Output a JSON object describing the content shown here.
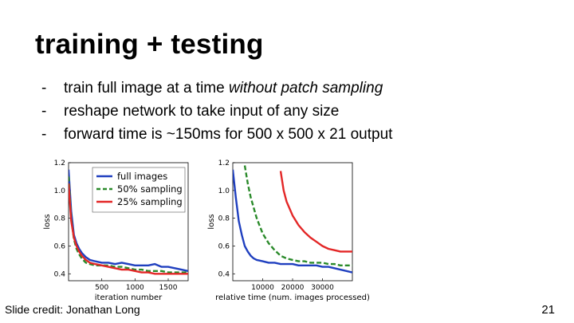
{
  "slide": {
    "title": "training + testing",
    "bullets": [
      {
        "dash": "-",
        "pre": "train full image at a time ",
        "em": "without patch sampling",
        "post": ""
      },
      {
        "dash": "-",
        "pre": "reshape network to take input of any size",
        "em": "",
        "post": ""
      },
      {
        "dash": "-",
        "pre": "forward time is ~150ms for 500 x 500 x 21 output",
        "em": "",
        "post": ""
      }
    ],
    "credit": "Slide credit: Jonathan Long",
    "page_number": "21"
  },
  "chart_data": [
    {
      "type": "line",
      "xlabel": "iteration number",
      "ylabel": "loss",
      "xlim": [
        0,
        1800
      ],
      "ylim": [
        0.35,
        1.2
      ],
      "xticks": [
        500,
        1000,
        1500
      ],
      "yticks": [
        0.4,
        0.6,
        0.8,
        1.0,
        1.2
      ],
      "grid": false,
      "legend": "top-right",
      "legend_entries": [
        {
          "label": "full images",
          "color": "#1f3fbf",
          "dash": "solid"
        },
        {
          "label": "50% sampling",
          "color": "#2a8a2a",
          "dash": "dashed"
        },
        {
          "label": "25% sampling",
          "color": "#e32626",
          "dash": "solid"
        }
      ],
      "series": [
        {
          "name": "full images",
          "color": "#1f3fbf",
          "x": [
            0,
            40,
            80,
            120,
            160,
            200,
            260,
            320,
            400,
            500,
            600,
            700,
            800,
            900,
            1000,
            1100,
            1200,
            1300,
            1400,
            1500,
            1600,
            1700,
            1800
          ],
          "y": [
            1.15,
            0.85,
            0.68,
            0.62,
            0.58,
            0.55,
            0.52,
            0.5,
            0.49,
            0.48,
            0.48,
            0.47,
            0.48,
            0.47,
            0.46,
            0.46,
            0.46,
            0.47,
            0.45,
            0.45,
            0.44,
            0.43,
            0.42
          ]
        },
        {
          "name": "50% sampling",
          "color": "#2a8a2a",
          "x": [
            0,
            40,
            80,
            120,
            160,
            200,
            260,
            320,
            400,
            500,
            600,
            700,
            800,
            900,
            1000,
            1100,
            1200,
            1300,
            1400,
            1500,
            1600,
            1700,
            1800
          ],
          "y": [
            1.1,
            0.8,
            0.65,
            0.58,
            0.54,
            0.51,
            0.48,
            0.47,
            0.46,
            0.46,
            0.46,
            0.45,
            0.45,
            0.44,
            0.43,
            0.43,
            0.42,
            0.42,
            0.42,
            0.41,
            0.41,
            0.41,
            0.41
          ]
        },
        {
          "name": "25% sampling",
          "color": "#e32626",
          "x": [
            0,
            40,
            80,
            120,
            160,
            200,
            260,
            320,
            400,
            500,
            600,
            700,
            800,
            900,
            1000,
            1100,
            1200,
            1300,
            1400,
            1500,
            1600,
            1700,
            1800
          ],
          "y": [
            1.05,
            0.78,
            0.66,
            0.6,
            0.56,
            0.53,
            0.5,
            0.48,
            0.47,
            0.46,
            0.45,
            0.44,
            0.43,
            0.43,
            0.42,
            0.41,
            0.41,
            0.4,
            0.4,
            0.4,
            0.4,
            0.4,
            0.4
          ]
        }
      ]
    },
    {
      "type": "line",
      "xlabel": "relative time (num. images processed)",
      "ylabel": "loss",
      "xlim": [
        0,
        40000
      ],
      "ylim": [
        0.35,
        1.2
      ],
      "xticks": [
        10000,
        20000,
        30000
      ],
      "yticks": [
        0.4,
        0.6,
        0.8,
        1.0,
        1.2
      ],
      "grid": false,
      "series": [
        {
          "name": "full images",
          "color": "#1f3fbf",
          "x": [
            0,
            1000,
            2000,
            3000,
            4000,
            5000,
            6000,
            7000,
            8000,
            10000,
            12000,
            14000,
            16000,
            18000,
            20000,
            22000,
            24000,
            26000,
            28000,
            30000,
            32000,
            34000,
            36000,
            38000,
            40000
          ],
          "y": [
            1.15,
            0.95,
            0.78,
            0.68,
            0.6,
            0.56,
            0.53,
            0.51,
            0.5,
            0.49,
            0.48,
            0.48,
            0.47,
            0.47,
            0.47,
            0.46,
            0.46,
            0.46,
            0.46,
            0.45,
            0.45,
            0.44,
            0.43,
            0.42,
            0.41
          ]
        },
        {
          "name": "50% sampling",
          "color": "#2a8a2a",
          "x": [
            4000,
            5000,
            6000,
            8000,
            10000,
            12000,
            14000,
            16000,
            18000,
            20000,
            22000,
            24000,
            26000,
            28000,
            30000,
            32000,
            34000,
            36000,
            38000,
            40000
          ],
          "y": [
            1.18,
            1.05,
            0.95,
            0.8,
            0.69,
            0.62,
            0.57,
            0.53,
            0.51,
            0.5,
            0.49,
            0.49,
            0.48,
            0.48,
            0.48,
            0.47,
            0.47,
            0.46,
            0.46,
            0.46
          ]
        },
        {
          "name": "25% sampling",
          "color": "#e32626",
          "x": [
            16000,
            17000,
            18000,
            20000,
            22000,
            24000,
            26000,
            28000,
            30000,
            32000,
            34000,
            36000,
            38000,
            40000
          ],
          "y": [
            1.14,
            1.0,
            0.92,
            0.82,
            0.75,
            0.7,
            0.66,
            0.63,
            0.6,
            0.58,
            0.57,
            0.56,
            0.56,
            0.56
          ]
        }
      ]
    }
  ]
}
